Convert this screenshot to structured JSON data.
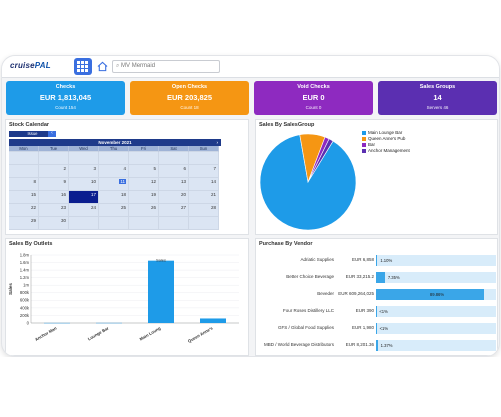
{
  "app": {
    "logo_text_a": "cruise",
    "logo_text_b": "PAL",
    "ship_select_value": "MV Mermaid"
  },
  "cards": [
    {
      "title": "Checks",
      "value": "EUR 1,813,045",
      "sub": "Count 154",
      "color": "#1e9be8"
    },
    {
      "title": "Open Checks",
      "value": "EUR 203,825",
      "sub": "Count 18",
      "color": "#f59613"
    },
    {
      "title": "Void Checks",
      "value": "EUR 0",
      "sub": "Count 0",
      "color": "#8e2ac0"
    },
    {
      "title": "Sales Groups",
      "value": "14",
      "sub": "Servers 46",
      "color": "#5b2fb1"
    }
  ],
  "calendar": {
    "title": "Stock Calendar",
    "today_button": "Issue",
    "nav_prev": "‹",
    "nav_next": "›",
    "month_label": "November 2021",
    "days_of_week": [
      "Mon",
      "Tue",
      "Wed",
      "Thu",
      "Fri",
      "Sat",
      "Sun"
    ],
    "weeks": [
      [
        "",
        "",
        "",
        "",
        "",
        "",
        ""
      ],
      [
        "",
        "2",
        "3",
        "4",
        "5",
        "6",
        "7"
      ],
      [
        "8",
        "9",
        "10",
        "11",
        "12",
        "13",
        "14"
      ],
      [
        "15",
        "16",
        "17",
        "18",
        "19",
        "20",
        "21"
      ],
      [
        "22",
        "23",
        "24",
        "25",
        "26",
        "27",
        "28"
      ],
      [
        "29",
        "30",
        "",
        "",
        "",
        "",
        ""
      ]
    ],
    "selected_day": "17",
    "today_day": "11"
  },
  "sales_group": {
    "title": "Sales By SalesGroup",
    "chart_data": {
      "type": "pie",
      "slices": [
        {
          "label": "Main Lounge Bar",
          "value": 88.5,
          "color": "#1e9be8"
        },
        {
          "label": "Queen Anne's Pub",
          "value": 8.5,
          "color": "#f59613"
        },
        {
          "label": "Bar",
          "value": 1.5,
          "color": "#8e2ac0"
        },
        {
          "label": "Anchor Management",
          "value": 1.5,
          "color": "#5b2fb1"
        }
      ],
      "legend_position": "top-right"
    }
  },
  "outlets": {
    "title": "Sales By Outlets",
    "chart_data": {
      "type": "bar",
      "series_name": "Sales",
      "categories": [
        "Anchor Man",
        "Lounge Bar",
        "Main Loung",
        "Queen Anne's"
      ],
      "values": [
        3000,
        4000,
        1650000,
        120000
      ],
      "y_ticks": [
        "1.8m",
        "1.6m",
        "1.4m",
        "1.2m",
        "1m",
        "800k",
        "600k",
        "400k",
        "200k",
        "0"
      ],
      "ylim": [
        0,
        1800000
      ],
      "ylabel": "Sales",
      "bar_color": "#1e9be8"
    }
  },
  "vendors": {
    "title": "Purchase By Vendor",
    "rows": [
      {
        "name": "Adriatic Supplies",
        "amount": "EUR 6,858",
        "pct_label": "1.10%",
        "pct": 1.1
      },
      {
        "name": "Better Choice Beverage",
        "amount": "EUR 33,215.2",
        "pct_label": "7.35%",
        "pct": 7.35
      },
      {
        "name": "Beveder",
        "amount": "EUR 609,264,025",
        "pct_label": "89.86%",
        "pct": 89.86
      },
      {
        "name": "Four Roses Distillery LLC",
        "amount": "EUR 390",
        "pct_label": "<1%",
        "pct": 0.3
      },
      {
        "name": "GFS / Global Food Supplies",
        "amount": "EUR 1,980",
        "pct_label": "<1%",
        "pct": 0.5
      },
      {
        "name": "MBD / World Beverage Distributors",
        "amount": "EUR 8,201.36",
        "pct_label": "1.37%",
        "pct": 1.37
      }
    ]
  }
}
